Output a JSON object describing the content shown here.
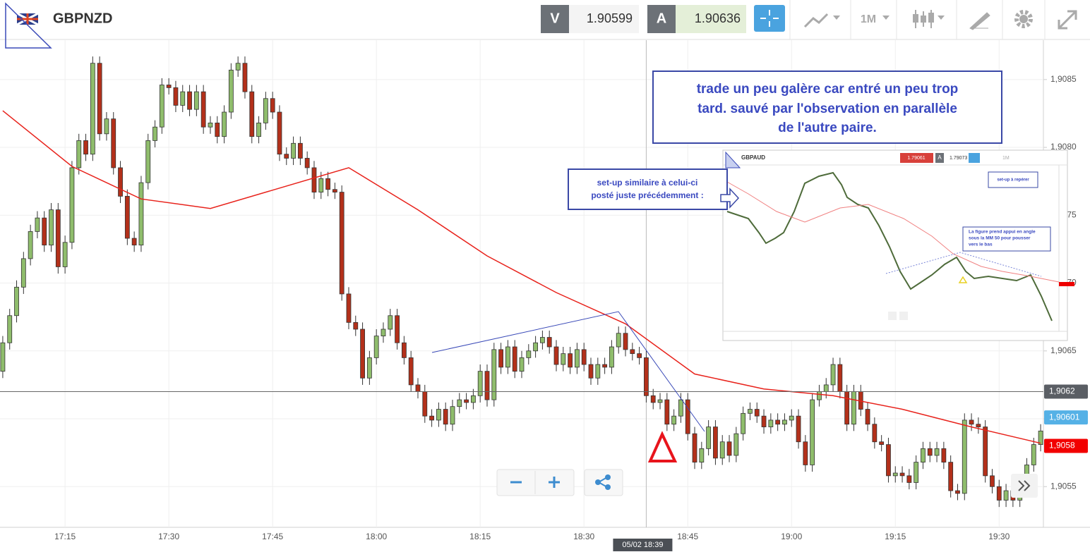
{
  "header": {
    "symbol": "GBPNZD",
    "bid_label": "V",
    "bid": "1.90599",
    "ask_label": "A",
    "ask": "1.90636",
    "timeframe": "1M"
  },
  "chart_data": {
    "type": "candlestick",
    "x": [
      1026,
      1027,
      1028,
      1029,
      1030,
      1031,
      1032,
      1033,
      1034,
      1035,
      1036,
      1037,
      1038,
      1039,
      1040,
      1041,
      1042,
      1043,
      1044,
      1045,
      1046,
      1047,
      1048,
      1049,
      1050,
      1051,
      1052,
      1053,
      1054,
      1055,
      1056,
      1057,
      1058,
      1059,
      1060,
      1061,
      1062,
      1063,
      1064,
      1065,
      1066,
      1067,
      1068,
      1069,
      1070,
      1071,
      1072,
      1073,
      1074,
      1075,
      1076,
      1077,
      1078,
      1079,
      1080,
      1081,
      1082,
      1083,
      1084,
      1085,
      1086,
      1087,
      1088,
      1089,
      1090,
      1091,
      1092,
      1093,
      1094,
      1095,
      1096,
      1097,
      1098,
      1099,
      1100,
      1101,
      1102,
      1103,
      1104,
      1105,
      1106,
      1107,
      1108,
      1109,
      1110,
      1111,
      1112,
      1113,
      1114,
      1115,
      1116,
      1117,
      1118,
      1119,
      1120,
      1121,
      1122,
      1123,
      1124,
      1125,
      1126,
      1127,
      1128,
      1129,
      1130,
      1131,
      1132,
      1133,
      1134,
      1135,
      1136,
      1137,
      1138,
      1139,
      1140,
      1141,
      1142,
      1143,
      1144,
      1145,
      1146,
      1147,
      1148,
      1149,
      1150,
      1151,
      1152,
      1153,
      1154,
      1155,
      1156,
      1157,
      1158,
      1159,
      1160,
      1161,
      1162,
      1163,
      1164,
      1165,
      1166,
      1167,
      1168,
      1169,
      1170,
      1171,
      1172,
      1173,
      1174,
      1175,
      1176
    ],
    "open": [
      1.90635,
      1.90656,
      1.90676,
      1.90697,
      1.90718,
      1.90738,
      1.90748,
      1.90728,
      1.90754,
      1.90712,
      1.9073,
      1.90785,
      1.90805,
      1.90795,
      1.90862,
      1.9081,
      1.90821,
      1.90785,
      1.90764,
      1.90733,
      1.90728,
      1.90774,
      1.90805,
      1.90815,
      1.90846,
      1.90844,
      1.90831,
      1.90841,
      1.90828,
      1.90841,
      1.90815,
      1.90818,
      1.90808,
      1.90826,
      1.90857,
      1.90862,
      1.90841,
      1.90808,
      1.90818,
      1.90836,
      1.90826,
      1.90795,
      1.90792,
      1.90803,
      1.90792,
      1.90785,
      1.90767,
      1.90777,
      1.90769,
      1.90767,
      1.90692,
      1.90671,
      1.90666,
      1.9063,
      1.90645,
      1.90661,
      1.90666,
      1.90676,
      1.90656,
      1.90645,
      1.90625,
      1.9062,
      1.90602,
      1.90599,
      1.90607,
      1.90596,
      1.90609,
      1.90614,
      1.90612,
      1.90617,
      1.90635,
      1.90614,
      1.90651,
      1.90638,
      1.90653,
      1.90635,
      1.90645,
      1.9065,
      1.90656,
      1.9066,
      1.90653,
      1.9064,
      1.90648,
      1.90638,
      1.90651,
      1.9064,
      1.9063,
      1.9064,
      1.90638,
      1.90653,
      1.90663,
      1.90651,
      1.90648,
      1.90645,
      1.90617,
      1.90612,
      1.90614,
      1.90596,
      1.90602,
      1.90614,
      1.90589,
      1.90568,
      1.90578,
      1.90594,
      1.90571,
      1.90583,
      1.90573,
      1.90589,
      1.90604,
      1.90607,
      1.90602,
      1.90594,
      1.90599,
      1.90596,
      1.90599,
      1.90602,
      1.90583,
      1.90566,
      1.90614,
      1.9062,
      1.90625,
      1.9064,
      1.9062,
      1.90596,
      1.9062,
      1.90607,
      1.90596,
      1.90583,
      1.90581,
      1.90558,
      1.9056,
      1.90558,
      1.90553,
      1.90568,
      1.90578,
      1.90573,
      1.90578,
      1.90568,
      1.90547,
      1.90545,
      1.90599,
      1.90596,
      1.90594,
      1.90558,
      1.9055,
      1.9054,
      1.90547,
      1.9054,
      1.90553,
      1.90566,
      1.90581
    ],
    "high": [
      1.90661,
      1.90681,
      1.90702,
      1.90723,
      1.90743,
      1.90753,
      1.90753,
      1.90759,
      1.90759,
      1.90735,
      1.9079,
      1.9081,
      1.9081,
      1.90867,
      1.90867,
      1.90826,
      1.90826,
      1.9079,
      1.90769,
      1.90738,
      1.90779,
      1.9081,
      1.9082,
      1.90851,
      1.90851,
      1.90849,
      1.90846,
      1.90846,
      1.90846,
      1.90846,
      1.90823,
      1.90823,
      1.90831,
      1.90862,
      1.90867,
      1.90867,
      1.90846,
      1.90823,
      1.90841,
      1.90841,
      1.90831,
      1.908,
      1.90808,
      1.90808,
      1.90797,
      1.9079,
      1.90782,
      1.90782,
      1.90774,
      1.90772,
      1.90697,
      1.90676,
      1.90671,
      1.9065,
      1.90666,
      1.90671,
      1.90681,
      1.90681,
      1.90661,
      1.9065,
      1.9063,
      1.90625,
      1.90607,
      1.90612,
      1.90612,
      1.90614,
      1.90619,
      1.90619,
      1.90622,
      1.9064,
      1.9064,
      1.90656,
      1.90656,
      1.90658,
      1.90658,
      1.9065,
      1.90655,
      1.90661,
      1.90665,
      1.90665,
      1.90658,
      1.90653,
      1.90653,
      1.90656,
      1.90656,
      1.90645,
      1.90645,
      1.90645,
      1.90658,
      1.90668,
      1.90668,
      1.90656,
      1.90653,
      1.9065,
      1.90622,
      1.90619,
      1.90619,
      1.90607,
      1.90619,
      1.90619,
      1.90594,
      1.90583,
      1.90599,
      1.90599,
      1.90588,
      1.90588,
      1.90594,
      1.90609,
      1.90612,
      1.90612,
      1.90607,
      1.90604,
      1.90604,
      1.90604,
      1.90607,
      1.90607,
      1.90588,
      1.90619,
      1.90625,
      1.9063,
      1.90645,
      1.90645,
      1.90625,
      1.90625,
      1.90625,
      1.90612,
      1.90601,
      1.90588,
      1.90586,
      1.90565,
      1.90565,
      1.90563,
      1.90573,
      1.90583,
      1.90583,
      1.90583,
      1.90583,
      1.90573,
      1.90552,
      1.90604,
      1.90604,
      1.90601,
      1.90599,
      1.90563,
      1.90555,
      1.90552,
      1.90552,
      1.90558,
      1.90571,
      1.90586,
      1.90596
    ],
    "low": [
      1.9063,
      1.90651,
      1.90671,
      1.90692,
      1.90713,
      1.90733,
      1.90723,
      1.90723,
      1.90707,
      1.90707,
      1.90725,
      1.9078,
      1.9079,
      1.9079,
      1.90805,
      1.90805,
      1.9078,
      1.90759,
      1.90728,
      1.90723,
      1.90723,
      1.90769,
      1.908,
      1.9081,
      1.90839,
      1.90826,
      1.90826,
      1.90823,
      1.90823,
      1.9081,
      1.9081,
      1.90803,
      1.90803,
      1.90821,
      1.90852,
      1.90836,
      1.90803,
      1.90803,
      1.90813,
      1.90821,
      1.9079,
      1.90787,
      1.90787,
      1.90787,
      1.9078,
      1.90762,
      1.90762,
      1.90764,
      1.90762,
      1.90687,
      1.90666,
      1.90661,
      1.90625,
      1.90625,
      1.9064,
      1.90656,
      1.90661,
      1.90651,
      1.9064,
      1.9062,
      1.90615,
      1.90597,
      1.90594,
      1.90594,
      1.90591,
      1.90591,
      1.90604,
      1.90607,
      1.90607,
      1.90612,
      1.90609,
      1.90609,
      1.90633,
      1.90633,
      1.9063,
      1.9063,
      1.9064,
      1.90645,
      1.90651,
      1.90648,
      1.90635,
      1.90635,
      1.90633,
      1.90633,
      1.90635,
      1.90625,
      1.90625,
      1.90633,
      1.90633,
      1.90648,
      1.90646,
      1.90643,
      1.9064,
      1.90612,
      1.90607,
      1.90607,
      1.90591,
      1.90591,
      1.90597,
      1.90584,
      1.90563,
      1.90563,
      1.90573,
      1.90566,
      1.90566,
      1.90568,
      1.90568,
      1.90584,
      1.90599,
      1.90597,
      1.90589,
      1.90589,
      1.90591,
      1.90591,
      1.90594,
      1.90578,
      1.90561,
      1.90561,
      1.90609,
      1.90615,
      1.9062,
      1.90615,
      1.90591,
      1.90591,
      1.90602,
      1.90591,
      1.90578,
      1.90576,
      1.90553,
      1.90553,
      1.90553,
      1.90548,
      1.90548,
      1.90563,
      1.90568,
      1.90568,
      1.90563,
      1.90542,
      1.9054,
      1.9054,
      1.90591,
      1.90589,
      1.90553,
      1.90545,
      1.90535,
      1.90535,
      1.90535,
      1.90535,
      1.90548,
      1.90561,
      1.90576
    ],
    "close": [
      1.90656,
      1.90676,
      1.90697,
      1.90718,
      1.90738,
      1.90748,
      1.90728,
      1.90754,
      1.90712,
      1.9073,
      1.90785,
      1.90805,
      1.90795,
      1.90862,
      1.9081,
      1.90821,
      1.90785,
      1.90764,
      1.90733,
      1.90728,
      1.90774,
      1.90805,
      1.90815,
      1.90846,
      1.90844,
      1.90831,
      1.90841,
      1.90828,
      1.90841,
      1.90815,
      1.90818,
      1.90808,
      1.90826,
      1.90857,
      1.90862,
      1.90841,
      1.90808,
      1.90818,
      1.90836,
      1.90826,
      1.90795,
      1.90792,
      1.90803,
      1.90792,
      1.90785,
      1.90767,
      1.90777,
      1.90769,
      1.90767,
      1.90692,
      1.90671,
      1.90666,
      1.9063,
      1.90645,
      1.90661,
      1.90666,
      1.90676,
      1.90656,
      1.90645,
      1.90625,
      1.9062,
      1.90602,
      1.90599,
      1.90607,
      1.90596,
      1.90609,
      1.90614,
      1.90612,
      1.90617,
      1.90635,
      1.90614,
      1.90651,
      1.90638,
      1.90653,
      1.90635,
      1.90645,
      1.9065,
      1.90656,
      1.9066,
      1.90653,
      1.9064,
      1.90648,
      1.90638,
      1.90651,
      1.9064,
      1.9063,
      1.9064,
      1.90638,
      1.90653,
      1.90663,
      1.90651,
      1.90648,
      1.90645,
      1.90617,
      1.90612,
      1.90614,
      1.90596,
      1.90602,
      1.90614,
      1.90589,
      1.90568,
      1.90578,
      1.90594,
      1.90571,
      1.90583,
      1.90573,
      1.90589,
      1.90604,
      1.90607,
      1.90602,
      1.90594,
      1.90599,
      1.90596,
      1.90599,
      1.90602,
      1.90583,
      1.90566,
      1.90614,
      1.9062,
      1.90625,
      1.9064,
      1.9062,
      1.90596,
      1.9062,
      1.90607,
      1.90596,
      1.90583,
      1.90581,
      1.90558,
      1.9056,
      1.90558,
      1.90553,
      1.90568,
      1.90578,
      1.90573,
      1.90578,
      1.90568,
      1.90547,
      1.90545,
      1.90599,
      1.90596,
      1.90594,
      1.90558,
      1.9055,
      1.9054,
      1.90547,
      1.9054,
      1.90553,
      1.90566,
      1.90581,
      1.90591
    ],
    "up_color": "#8fbd6c",
    "down_color": "#b3301a",
    "ma": {
      "color": "#e8221b",
      "x": [
        1026,
        1036,
        1046,
        1056,
        1066,
        1076,
        1086,
        1096,
        1106,
        1116,
        1126,
        1136,
        1146,
        1156,
        1166,
        1176
      ],
      "values": [
        1.90827,
        1.90786,
        1.90762,
        1.90755,
        1.9077,
        1.90785,
        1.90754,
        1.9072,
        1.90693,
        1.9067,
        1.90633,
        1.90622,
        1.90617,
        1.90607,
        1.90594,
        1.90582
      ]
    },
    "xlim": [
      1025.6,
      1176.4
    ],
    "xticks": [
      {
        "value": 1035,
        "label": "17:15"
      },
      {
        "value": 1050,
        "label": "17:30"
      },
      {
        "value": 1065,
        "label": "17:45"
      },
      {
        "value": 1080,
        "label": "18:00"
      },
      {
        "value": 1095,
        "label": "18:15"
      },
      {
        "value": 1110,
        "label": "18:30"
      },
      {
        "value": 1125,
        "label": "18:45"
      },
      {
        "value": 1140,
        "label": "19:00"
      },
      {
        "value": 1155,
        "label": "19:15"
      },
      {
        "value": 1170,
        "label": "19:30"
      }
    ],
    "ylim": [
      1.9052,
      1.90879
    ],
    "yticks": [
      {
        "value": 1.9055,
        "label": "1,9055"
      },
      {
        "value": 1.906,
        "label": "1,9060"
      },
      {
        "value": 1.9065,
        "label": "1,9065"
      },
      {
        "value": 1.907,
        "label": "1,9070"
      },
      {
        "value": 1.9075,
        "label": "1,9075"
      },
      {
        "value": 1.908,
        "label": "1,9080"
      },
      {
        "value": 1.9085,
        "label": "1,9085"
      }
    ],
    "grid": true,
    "price_lines": [
      {
        "value": 1.9062,
        "label": "1,9062",
        "color": "#5a5e64",
        "line": true
      },
      {
        "value": 1.90601,
        "label": "1,90601",
        "color": "#55b1e6",
        "line": false
      },
      {
        "value": 1.9058,
        "label": "1,9058",
        "color": "#f20000",
        "line": false
      }
    ],
    "crosshair": {
      "x": 1119,
      "label": "05/02 18:39"
    }
  },
  "annotation": {
    "lines": [
      "trade un peu galère car entré un peu trop",
      "tard. sauvé par l'observation en parallèle",
      "de l'autre paire."
    ]
  },
  "note": {
    "lines": [
      "set-up similaire à celui-ci",
      "posté juste précédemment :"
    ]
  },
  "inset": {
    "symbol": "GBPAUD",
    "bid": "1.79061",
    "ask_label": "A",
    "ask": "1.79073",
    "timeframe": "1M",
    "setup": "set-up à repérer",
    "caption": [
      "La figure prend appui en angle",
      "sous la MM 50 pour pousser",
      "vers le bas"
    ]
  }
}
